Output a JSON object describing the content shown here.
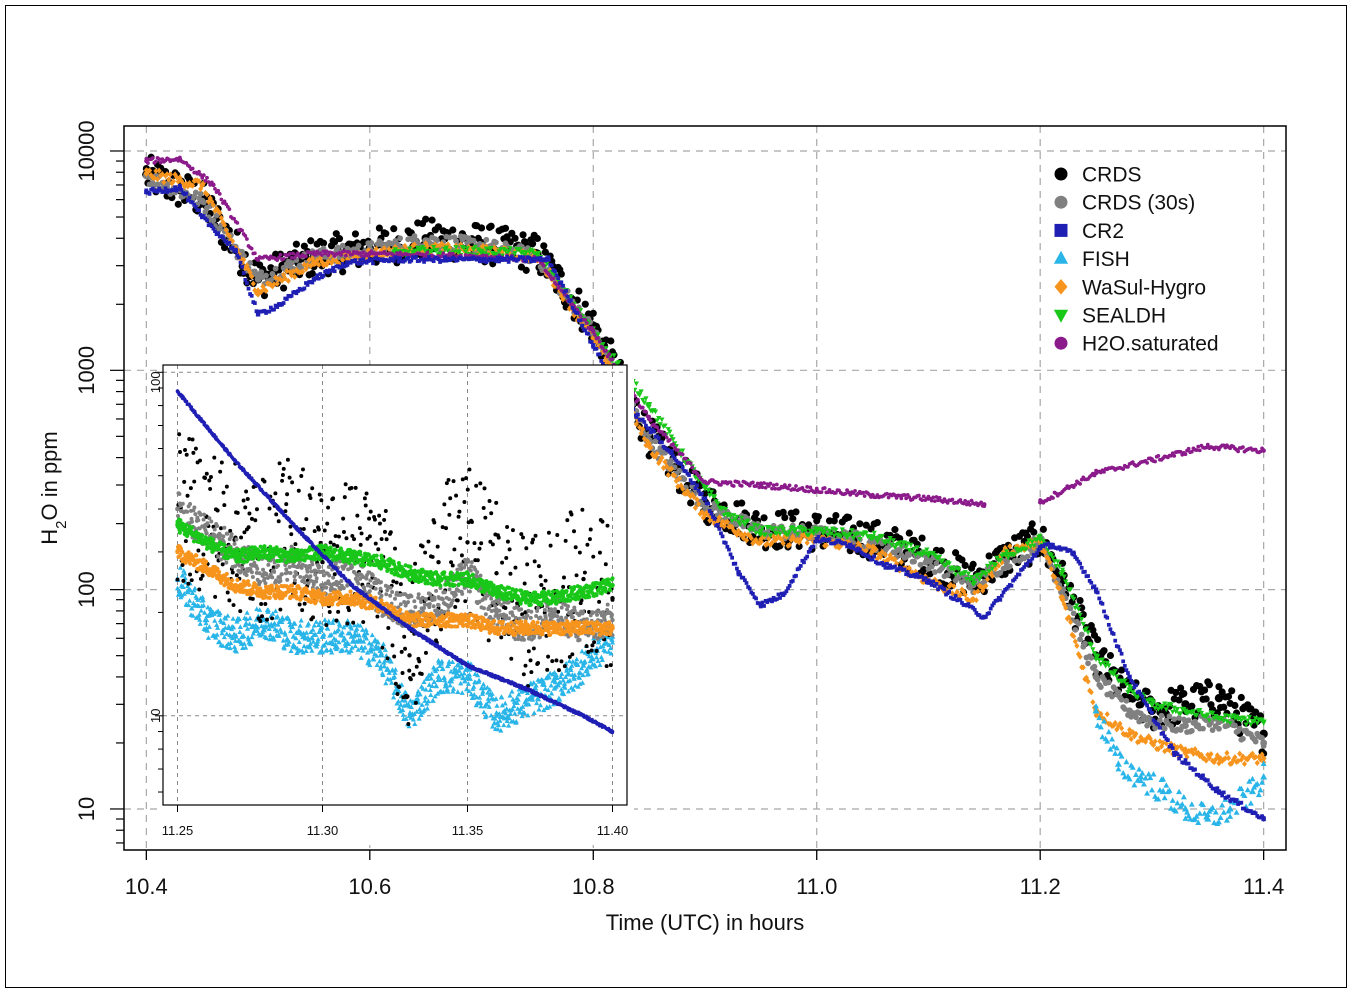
{
  "chart_data": {
    "type": "scatter",
    "xlabel": "Time (UTC) in hours",
    "ylabel_main": "H",
    "ylabel_sub": "2",
    "ylabel_rest": "O in ppm",
    "x_scale": "linear",
    "y_scale": "log",
    "xlim": [
      10.38,
      11.42
    ],
    "ylim": [
      6.5,
      13000
    ],
    "x_ticks": [
      10.4,
      10.6,
      10.8,
      11.0,
      11.2,
      11.4
    ],
    "x_tick_labels": [
      "10.4",
      "10.6",
      "10.8",
      "11.0",
      "11.2",
      "11.4"
    ],
    "y_ticks": [
      10,
      100,
      1000,
      10000
    ],
    "y_tick_labels": [
      "10",
      "100",
      "1000",
      "10000"
    ],
    "grid": true,
    "legend_position": "top-right",
    "series": [
      {
        "name": "CRDS",
        "color": "#000000",
        "marker": "circle",
        "x": [
          10.4,
          10.45,
          10.5,
          10.55,
          10.6,
          10.65,
          10.7,
          10.75,
          10.8,
          10.85,
          10.9,
          10.95,
          11.0,
          11.05,
          11.1,
          11.14,
          11.17,
          11.2,
          11.22,
          11.25,
          11.28,
          11.3,
          11.33,
          11.36,
          11.4
        ],
        "y": [
          7800,
          6000,
          2600,
          3300,
          3600,
          4000,
          3800,
          3400,
          1600,
          500,
          250,
          190,
          185,
          170,
          140,
          110,
          140,
          170,
          110,
          50,
          32,
          28,
          30,
          32,
          22
        ]
      },
      {
        "name": "CRDS (30s)",
        "color": "#808080",
        "marker": "circle",
        "x": [
          10.4,
          10.45,
          10.5,
          10.55,
          10.6,
          10.65,
          10.7,
          10.75,
          10.8,
          10.85,
          10.9,
          10.95,
          11.0,
          11.05,
          11.1,
          11.14,
          11.17,
          11.2,
          11.22,
          11.25,
          11.28,
          11.3,
          11.33,
          11.36,
          11.4
        ],
        "y": [
          7700,
          5900,
          2600,
          3300,
          3550,
          3900,
          3700,
          3300,
          1500,
          480,
          240,
          185,
          180,
          165,
          135,
          105,
          135,
          165,
          100,
          40,
          28,
          25,
          24,
          25,
          20
        ]
      },
      {
        "name": "CR2",
        "color": "#1f1fb4",
        "marker": "square",
        "x": [
          10.4,
          10.43,
          10.45,
          10.48,
          10.5,
          10.52,
          10.55,
          10.58,
          10.62,
          10.7,
          10.76,
          10.8,
          10.83,
          10.87,
          10.9,
          10.93,
          10.95,
          10.97,
          11.0,
          11.03,
          11.06,
          11.1,
          11.15,
          11.2,
          11.21,
          11.23,
          11.25,
          11.28,
          11.32,
          11.36,
          11.4
        ],
        "y": [
          6500,
          6800,
          5000,
          3500,
          1800,
          2000,
          2600,
          3100,
          3200,
          3200,
          3200,
          1300,
          700,
          420,
          260,
          120,
          85,
          95,
          170,
          160,
          130,
          110,
          75,
          155,
          160,
          145,
          100,
          40,
          18,
          12,
          9
        ]
      },
      {
        "name": "FISH",
        "color": "#29b5e8",
        "marker": "triangle",
        "x": [
          11.25,
          11.27,
          11.29,
          11.31,
          11.33,
          11.35,
          11.37,
          11.39,
          11.4
        ],
        "y": [
          28,
          16,
          14,
          12,
          10,
          9,
          10,
          12,
          14
        ]
      },
      {
        "name": "WaSul-Hygro",
        "color": "#f7941d",
        "marker": "diamond",
        "x": [
          10.4,
          10.45,
          10.5,
          10.55,
          10.6,
          10.65,
          10.7,
          10.75,
          10.8,
          10.85,
          10.9,
          10.95,
          11.0,
          11.05,
          11.1,
          11.14,
          11.17,
          11.2,
          11.22,
          11.25,
          11.28,
          11.3,
          11.33,
          11.36,
          11.4
        ],
        "y": [
          7900,
          7000,
          2300,
          3100,
          3400,
          3600,
          3500,
          3300,
          1400,
          450,
          220,
          165,
          170,
          150,
          110,
          90,
          150,
          165,
          90,
          28,
          22,
          20,
          18,
          17,
          17
        ]
      },
      {
        "name": "SEALDH",
        "color": "#19c719",
        "marker": "triangle-down",
        "x": [
          10.62,
          10.65,
          10.7,
          10.75,
          10.8,
          10.85,
          10.9,
          10.92,
          10.95,
          11.0,
          11.05,
          11.1,
          11.14,
          11.17,
          11.2,
          11.22,
          11.25,
          11.28,
          11.3,
          11.33,
          11.36,
          11.4
        ],
        "y": [
          3400,
          3500,
          3500,
          3400,
          1500,
          700,
          290,
          220,
          185,
          185,
          175,
          145,
          110,
          145,
          170,
          120,
          50,
          35,
          30,
          28,
          26,
          25
        ]
      },
      {
        "name": "H2O.saturated",
        "color": "#8b1a8b",
        "marker": "circle",
        "x": [
          10.4,
          10.43,
          10.46,
          10.5,
          10.55,
          10.6,
          10.65,
          10.7,
          10.75,
          10.8,
          10.85,
          10.9,
          10.95,
          11.0,
          11.05,
          11.1,
          11.15,
          11.2,
          11.25,
          11.3,
          11.35,
          11.4
        ],
        "y": [
          9000,
          9200,
          7000,
          3200,
          3400,
          3400,
          3350,
          3300,
          3200,
          1500,
          600,
          310,
          300,
          285,
          270,
          260,
          245,
          250,
          340,
          390,
          450,
          430
        ]
      }
    ],
    "inset": {
      "xlim": [
        11.245,
        11.405
      ],
      "ylim": [
        5.5,
        105
      ],
      "x_ticks": [
        11.25,
        11.3,
        11.35,
        11.4
      ],
      "x_tick_labels": [
        "11.25",
        "11.30",
        "11.35",
        "11.40"
      ],
      "y_ticks": [
        10,
        100
      ],
      "y_tick_labels": [
        "10",
        "100"
      ],
      "series": [
        {
          "name": "CRDS",
          "color": "#000000",
          "x": [
            11.25,
            11.26,
            11.27,
            11.28,
            11.29,
            11.3,
            11.31,
            11.32,
            11.33,
            11.34,
            11.35,
            11.36,
            11.37,
            11.38,
            11.39,
            11.4
          ],
          "y": [
            40,
            38,
            33,
            30,
            36,
            28,
            30,
            27,
            15,
            28,
            32,
            26,
            20,
            22,
            25,
            22
          ]
        },
        {
          "name": "CRDS (30s)",
          "color": "#808080",
          "x": [
            11.25,
            11.26,
            11.27,
            11.28,
            11.29,
            11.3,
            11.31,
            11.32,
            11.33,
            11.34,
            11.35,
            11.36,
            11.37,
            11.38,
            11.39,
            11.4
          ],
          "y": [
            40,
            34,
            30,
            26,
            28,
            24,
            27,
            22,
            20,
            21,
            26,
            20,
            18,
            20,
            18,
            19
          ]
        },
        {
          "name": "CR2",
          "color": "#1f1fb4",
          "x": [
            11.25,
            11.27,
            11.29,
            11.31,
            11.33,
            11.35,
            11.37,
            11.39,
            11.4
          ],
          "y": [
            88,
            55,
            36,
            24,
            18,
            14,
            12,
            10,
            9
          ]
        },
        {
          "name": "FISH",
          "color": "#29b5e8",
          "x": [
            11.25,
            11.26,
            11.27,
            11.28,
            11.29,
            11.3,
            11.31,
            11.32,
            11.33,
            11.34,
            11.35,
            11.36,
            11.37,
            11.38,
            11.39,
            11.4
          ],
          "y": [
            25,
            19,
            17,
            19,
            17,
            17,
            17,
            15,
            10,
            13,
            13,
            10,
            11,
            12,
            14,
            17
          ]
        },
        {
          "name": "WaSul-Hygro",
          "color": "#f7941d",
          "x": [
            11.25,
            11.26,
            11.27,
            11.28,
            11.29,
            11.3,
            11.31,
            11.32,
            11.33,
            11.34,
            11.35,
            11.36,
            11.37,
            11.38,
            11.39,
            11.4
          ],
          "y": [
            30,
            27,
            24,
            23,
            23,
            22,
            22,
            21,
            19,
            19,
            19,
            18,
            18,
            18,
            18,
            18
          ]
        },
        {
          "name": "SEALDH",
          "color": "#19c719",
          "x": [
            11.25,
            11.26,
            11.27,
            11.28,
            11.29,
            11.3,
            11.31,
            11.32,
            11.33,
            11.34,
            11.35,
            11.36,
            11.37,
            11.38,
            11.39,
            11.4
          ],
          "y": [
            36,
            32,
            29,
            30,
            29,
            30,
            29,
            28,
            26,
            25,
            25,
            23,
            22,
            22,
            23,
            24
          ]
        }
      ]
    }
  }
}
